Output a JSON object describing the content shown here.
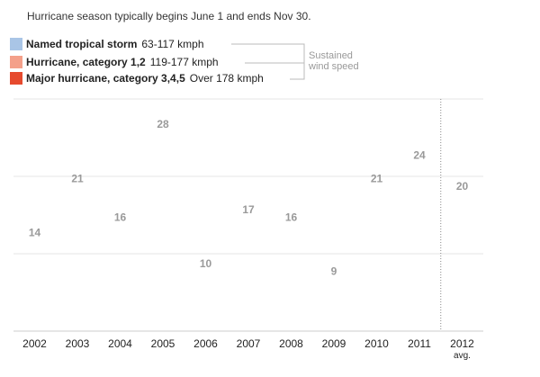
{
  "intro": "Hurricane season typically begins June 1 and ends Nov 30.",
  "legend": [
    {
      "name": "Named tropical storm",
      "range": "63-117 kmph",
      "color": "#a9c5e6"
    },
    {
      "name": "Hurricane, category 1,2",
      "range": "119-177 kmph",
      "color": "#f4a08a"
    },
    {
      "name": "Major hurricane, category 3,4,5",
      "range": "Over 178 kmph",
      "color": "#e64a2e"
    }
  ],
  "wind_note": [
    "Sustained",
    "wind speed"
  ],
  "chart_data": {
    "type": "bar",
    "categories": [
      "2002",
      "2003",
      "2004",
      "2005",
      "2006",
      "2007",
      "2008",
      "2009",
      "2010",
      "2011",
      "2012"
    ],
    "category_sublabels": {
      "2012": "avg."
    },
    "values": [
      14,
      21,
      16,
      28,
      10,
      17,
      16,
      9,
      21,
      24,
      20
    ],
    "ylim": [
      0,
      30
    ],
    "grid": true
  }
}
